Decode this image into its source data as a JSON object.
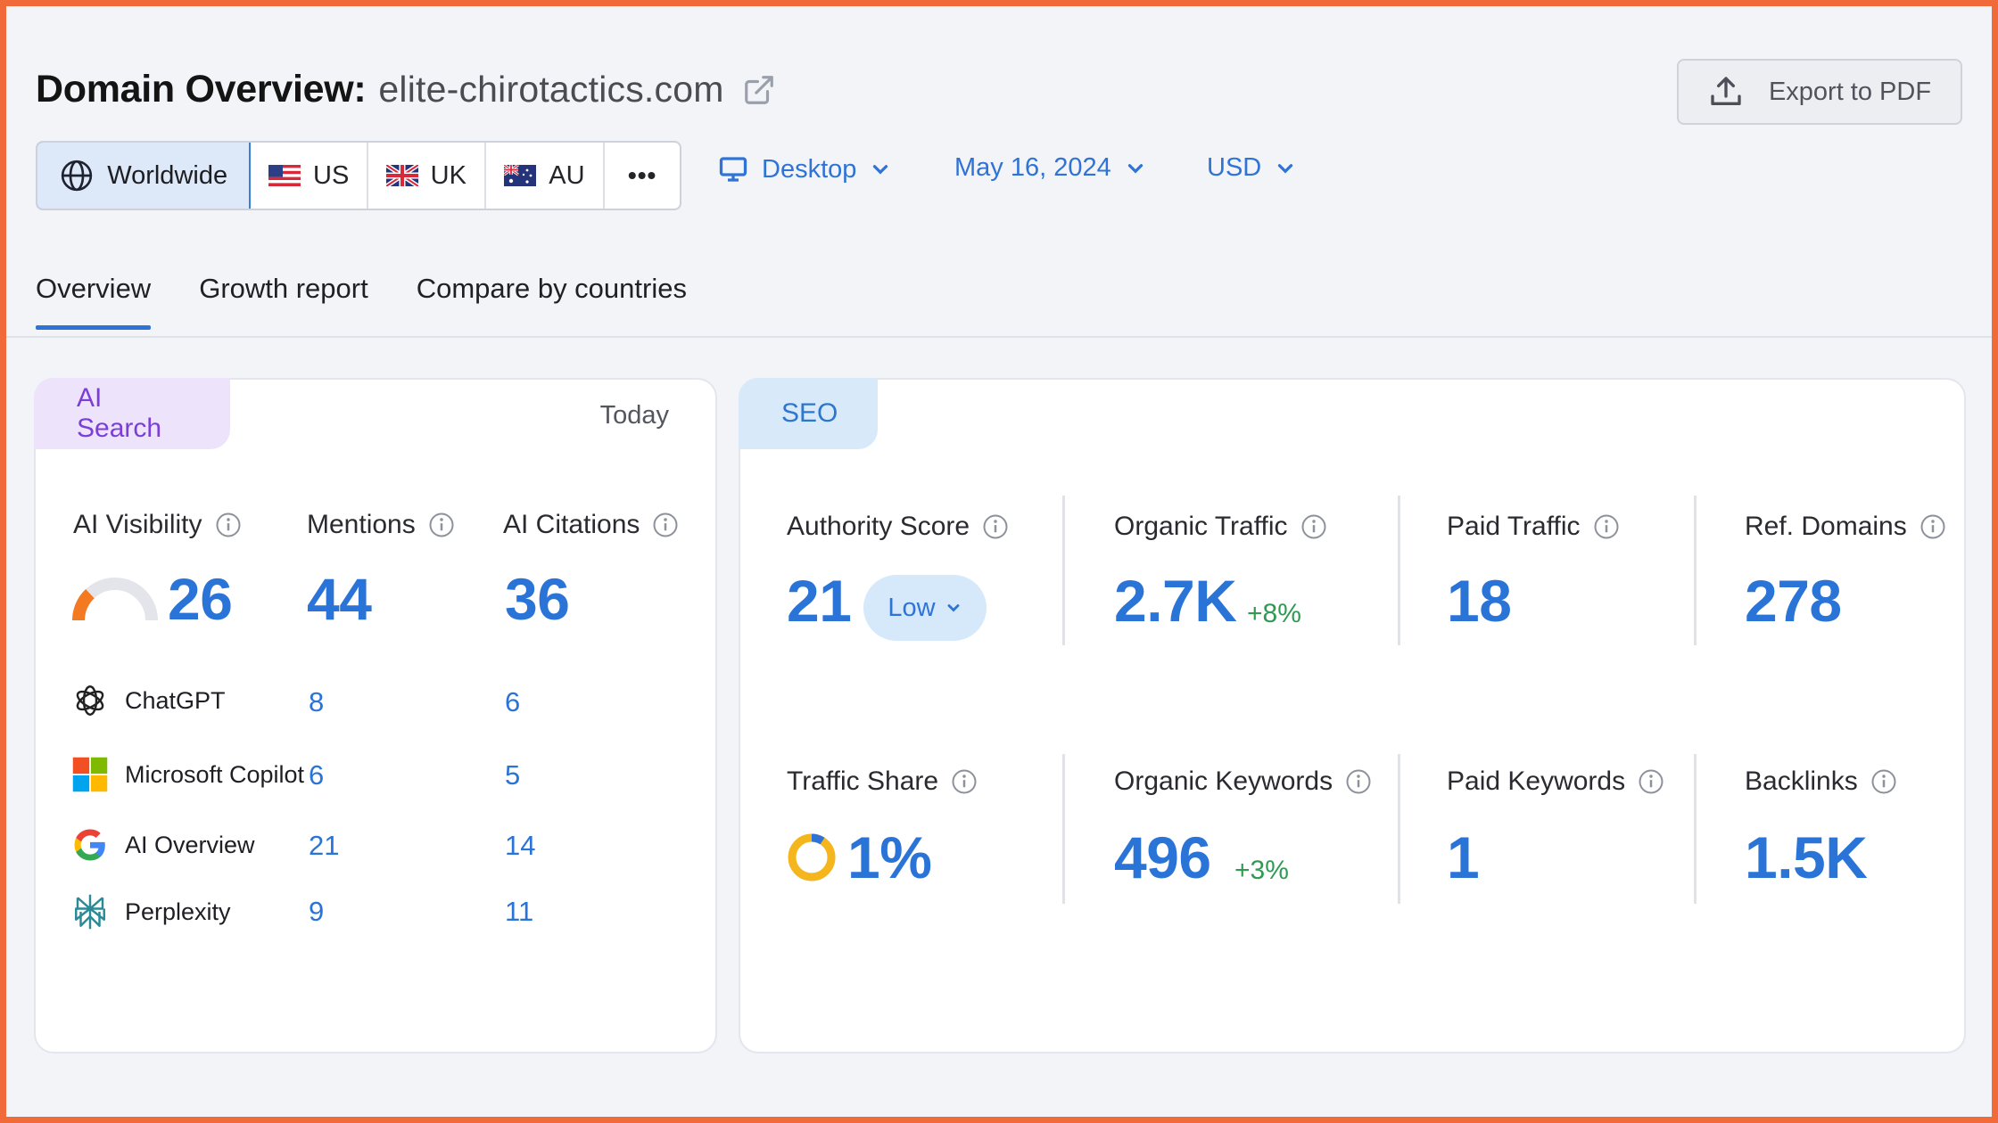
{
  "header": {
    "title_label": "Domain Overview:",
    "domain": "elite-chirotactics.com",
    "external_link_icon": "external-link-icon",
    "export_label": "Export to PDF",
    "export_icon": "upload-icon"
  },
  "regions": {
    "items": [
      {
        "label": "Worldwide",
        "icon": "globe-icon",
        "active": true
      },
      {
        "label": "US",
        "icon": "us-flag-icon"
      },
      {
        "label": "UK",
        "icon": "uk-flag-icon"
      },
      {
        "label": "AU",
        "icon": "au-flag-icon"
      }
    ],
    "more": "•••"
  },
  "filters": {
    "device": "Desktop",
    "date": "May 16, 2024",
    "currency": "USD"
  },
  "tabs": [
    "Overview",
    "Growth report",
    "Compare by countries"
  ],
  "ai_search": {
    "tag": "AI Search",
    "period": "Today",
    "visibility": {
      "label": "AI Visibility",
      "value": "26",
      "level": 0.26
    },
    "mentions": {
      "label": "Mentions",
      "value": "44"
    },
    "citations": {
      "label": "AI Citations",
      "value": "36"
    },
    "sources": [
      {
        "name": "ChatGPT",
        "mentions": "8",
        "citations": "6",
        "icon": "chatgpt-logo-icon"
      },
      {
        "name": "Microsoft Copilot",
        "mentions": "6",
        "citations": "5",
        "icon": "microsoft-logo-icon"
      },
      {
        "name": "AI Overview",
        "mentions": "21",
        "citations": "14",
        "icon": "google-logo-icon"
      },
      {
        "name": "Perplexity",
        "mentions": "9",
        "citations": "11",
        "icon": "perplexity-logo-icon"
      }
    ]
  },
  "seo": {
    "tag": "SEO",
    "authority": {
      "label": "Authority Score",
      "value": "21",
      "badge": "Low"
    },
    "organic_traffic": {
      "label": "Organic Traffic",
      "value": "2.7K",
      "delta": "+8%"
    },
    "paid_traffic": {
      "label": "Paid Traffic",
      "value": "18"
    },
    "ref_domains": {
      "label": "Ref. Domains",
      "value": "278"
    },
    "traffic_share": {
      "label": "Traffic Share",
      "value": "1%"
    },
    "organic_keywords": {
      "label": "Organic Keywords",
      "value": "496",
      "delta": "+3%"
    },
    "paid_keywords": {
      "label": "Paid Keywords",
      "value": "1"
    },
    "backlinks": {
      "label": "Backlinks",
      "value": "1.5K"
    }
  },
  "colors": {
    "accent": "#2f73d6",
    "frame": "#f06a3a",
    "ai_tag_bg": "#ede3fb",
    "seo_tag_bg": "#d8eafa",
    "positive": "#2f9a52"
  }
}
